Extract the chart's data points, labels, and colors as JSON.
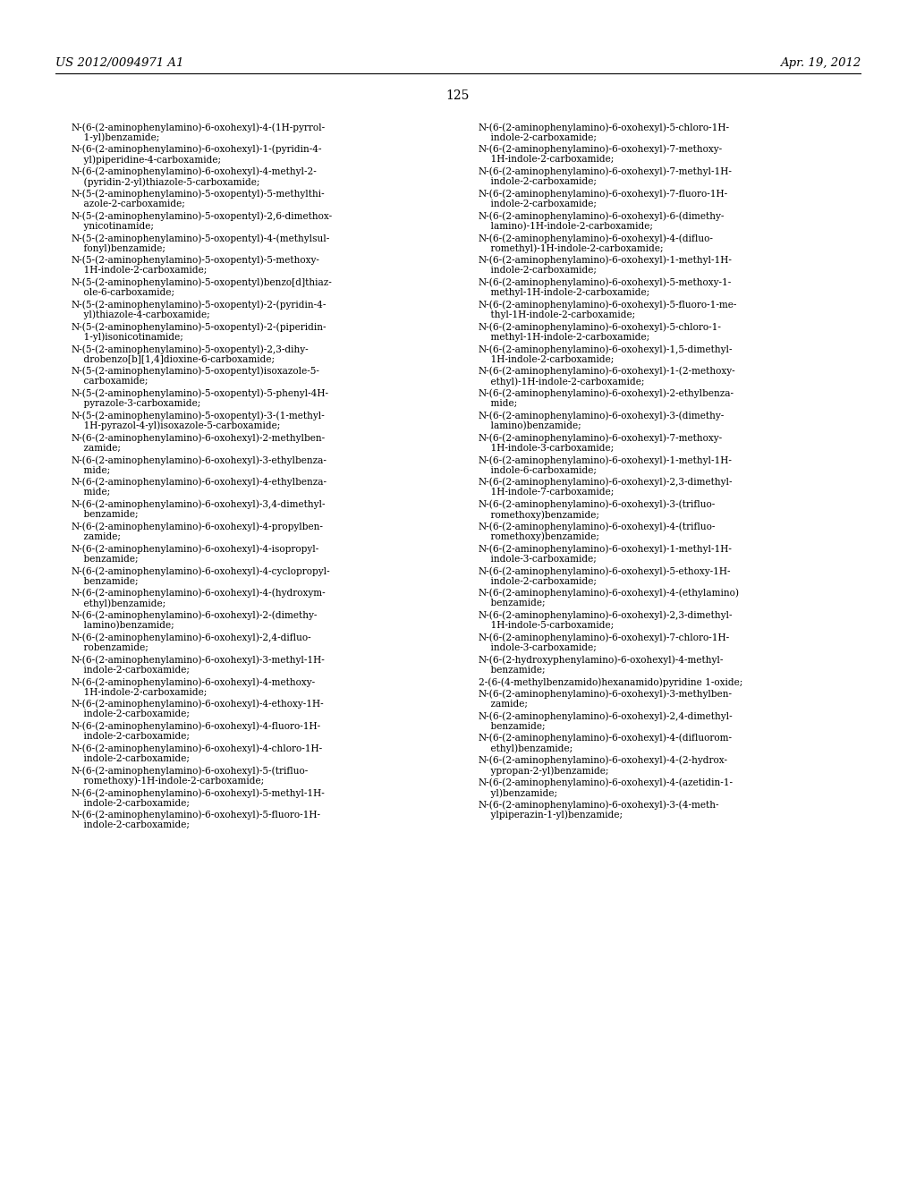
{
  "background_color": "#ffffff",
  "header_left": "US 2012/0094971 A1",
  "header_right": "Apr. 19, 2012",
  "page_number": "125",
  "font_size": 7.6,
  "header_font_size": 9.5,
  "page_num_font_size": 10.0,
  "left_column": [
    "N-(6-(2-aminophenylamino)-6-oxohexyl)-4-(1H-pyrrol-\n    1-yl)benzamide;",
    "N-(6-(2-aminophenylamino)-6-oxohexyl)-1-(pyridin-4-\n    yl)piperidine-4-carboxamide;",
    "N-(6-(2-aminophenylamino)-6-oxohexyl)-4-methyl-2-\n    (pyridin-2-yl)thiazole-5-carboxamide;",
    "N-(5-(2-aminophenylamino)-5-oxopentyl)-5-methylthi-\n    azole-2-carboxamide;",
    "N-(5-(2-aminophenylamino)-5-oxopentyl)-2,6-dimethox-\n    ynicotinamide;",
    "N-(5-(2-aminophenylamino)-5-oxopentyl)-4-(methylsul-\n    fonyl)benzamide;",
    "N-(5-(2-aminophenylamino)-5-oxopentyl)-5-methoxy-\n    1H-indole-2-carboxamide;",
    "N-(5-(2-aminophenylamino)-5-oxopentyl)benzo[d]thiaz-\n    ole-6-carboxamide;",
    "N-(5-(2-aminophenylamino)-5-oxopentyl)-2-(pyridin-4-\n    yl)thiazole-4-carboxamide;",
    "N-(5-(2-aminophenylamino)-5-oxopentyl)-2-(piperidin-\n    1-yl)isonicotinamide;",
    "N-(5-(2-aminophenylamino)-5-oxopentyl)-2,3-dihy-\n    drobenzo[b][1,4]dioxine-6-carboxamide;",
    "N-(5-(2-aminophenylamino)-5-oxopentyl)isoxazole-5-\n    carboxamide;",
    "N-(5-(2-aminophenylamino)-5-oxopentyl)-5-phenyl-4H-\n    pyrazole-3-carboxamide;",
    "N-(5-(2-aminophenylamino)-5-oxopentyl)-3-(1-methyl-\n    1H-pyrazol-4-yl)isoxazole-5-carboxamide;",
    "N-(6-(2-aminophenylamino)-6-oxohexyl)-2-methylben-\n    zamide;",
    "N-(6-(2-aminophenylamino)-6-oxohexyl)-3-ethylbenza-\n    mide;",
    "N-(6-(2-aminophenylamino)-6-oxohexyl)-4-ethylbenza-\n    mide;",
    "N-(6-(2-aminophenylamino)-6-oxohexyl)-3,4-dimethyl-\n    benzamide;",
    "N-(6-(2-aminophenylamino)-6-oxohexyl)-4-propylben-\n    zamide;",
    "N-(6-(2-aminophenylamino)-6-oxohexyl)-4-isopropyl-\n    benzamide;",
    "N-(6-(2-aminophenylamino)-6-oxohexyl)-4-cyclopropyl-\n    benzamide;",
    "N-(6-(2-aminophenylamino)-6-oxohexyl)-4-(hydroxym-\n    ethyl)benzamide;",
    "N-(6-(2-aminophenylamino)-6-oxohexyl)-2-(dimethy-\n    lamino)benzamide;",
    "N-(6-(2-aminophenylamino)-6-oxohexyl)-2,4-difluo-\n    robenzamide;",
    "N-(6-(2-aminophenylamino)-6-oxohexyl)-3-methyl-1H-\n    indole-2-carboxamide;",
    "N-(6-(2-aminophenylamino)-6-oxohexyl)-4-methoxy-\n    1H-indole-2-carboxamide;",
    "N-(6-(2-aminophenylamino)-6-oxohexyl)-4-ethoxy-1H-\n    indole-2-carboxamide;",
    "N-(6-(2-aminophenylamino)-6-oxohexyl)-4-fluoro-1H-\n    indole-2-carboxamide;",
    "N-(6-(2-aminophenylamino)-6-oxohexyl)-4-chloro-1H-\n    indole-2-carboxamide;",
    "N-(6-(2-aminophenylamino)-6-oxohexyl)-5-(trifluo-\n    romethoxy)-1H-indole-2-carboxamide;",
    "N-(6-(2-aminophenylamino)-6-oxohexyl)-5-methyl-1H-\n    indole-2-carboxamide;",
    "N-(6-(2-aminophenylamino)-6-oxohexyl)-5-fluoro-1H-\n    indole-2-carboxamide;"
  ],
  "right_column": [
    "N-(6-(2-aminophenylamino)-6-oxohexyl)-5-chloro-1H-\n    indole-2-carboxamide;",
    "N-(6-(2-aminophenylamino)-6-oxohexyl)-7-methoxy-\n    1H-indole-2-carboxamide;",
    "N-(6-(2-aminophenylamino)-6-oxohexyl)-7-methyl-1H-\n    indole-2-carboxamide;",
    "N-(6-(2-aminophenylamino)-6-oxohexyl)-7-fluoro-1H-\n    indole-2-carboxamide;",
    "N-(6-(2-aminophenylamino)-6-oxohexyl)-6-(dimethy-\n    lamino)-1H-indole-2-carboxamide;",
    "N-(6-(2-aminophenylamino)-6-oxohexyl)-4-(difluo-\n    romethyl)-1H-indole-2-carboxamide;",
    "N-(6-(2-aminophenylamino)-6-oxohexyl)-1-methyl-1H-\n    indole-2-carboxamide;",
    "N-(6-(2-aminophenylamino)-6-oxohexyl)-5-methoxy-1-\n    methyl-1H-indole-2-carboxamide;",
    "N-(6-(2-aminophenylamino)-6-oxohexyl)-5-fluoro-1-me-\n    thyl-1H-indole-2-carboxamide;",
    "N-(6-(2-aminophenylamino)-6-oxohexyl)-5-chloro-1-\n    methyl-1H-indole-2-carboxamide;",
    "N-(6-(2-aminophenylamino)-6-oxohexyl)-1,5-dimethyl-\n    1H-indole-2-carboxamide;",
    "N-(6-(2-aminophenylamino)-6-oxohexyl)-1-(2-methoxy-\n    ethyl)-1H-indole-2-carboxamide;",
    "N-(6-(2-aminophenylamino)-6-oxohexyl)-2-ethylbenza-\n    mide;",
    "N-(6-(2-aminophenylamino)-6-oxohexyl)-3-(dimethy-\n    lamino)benzamide;",
    "N-(6-(2-aminophenylamino)-6-oxohexyl)-7-methoxy-\n    1H-indole-3-carboxamide;",
    "N-(6-(2-aminophenylamino)-6-oxohexyl)-1-methyl-1H-\n    indole-6-carboxamide;",
    "N-(6-(2-aminophenylamino)-6-oxohexyl)-2,3-dimethyl-\n    1H-indole-7-carboxamide;",
    "N-(6-(2-aminophenylamino)-6-oxohexyl)-3-(trifluo-\n    romethoxy)benzamide;",
    "N-(6-(2-aminophenylamino)-6-oxohexyl)-4-(trifluo-\n    romethoxy)benzamide;",
    "N-(6-(2-aminophenylamino)-6-oxohexyl)-1-methyl-1H-\n    indole-3-carboxamide;",
    "N-(6-(2-aminophenylamino)-6-oxohexyl)-5-ethoxy-1H-\n    indole-2-carboxamide;",
    "N-(6-(2-aminophenylamino)-6-oxohexyl)-4-(ethylamino)\n    benzamide;",
    "N-(6-(2-aminophenylamino)-6-oxohexyl)-2,3-dimethyl-\n    1H-indole-5-carboxamide;",
    "N-(6-(2-aminophenylamino)-6-oxohexyl)-7-chloro-1H-\n    indole-3-carboxamide;",
    "N-(6-(2-hydroxyphenylamino)-6-oxohexyl)-4-methyl-\n    benzamide;",
    "2-(6-(4-methylbenzamido)hexanamido)pyridine 1-oxide;",
    "N-(6-(2-aminophenylamino)-6-oxohexyl)-3-methylben-\n    zamide;",
    "N-(6-(2-aminophenylamino)-6-oxohexyl)-2,4-dimethyl-\n    benzamide;",
    "N-(6-(2-aminophenylamino)-6-oxohexyl)-4-(difluorom-\n    ethyl)benzamide;",
    "N-(6-(2-aminophenylamino)-6-oxohexyl)-4-(2-hydrox-\n    ypropan-2-yl)benzamide;",
    "N-(6-(2-aminophenylamino)-6-oxohexyl)-4-(azetidin-1-\n    yl)benzamide;",
    "N-(6-(2-aminophenylamino)-6-oxohexyl)-3-(4-meth-\n    ylpiperazin-1-yl)benzamide;"
  ]
}
